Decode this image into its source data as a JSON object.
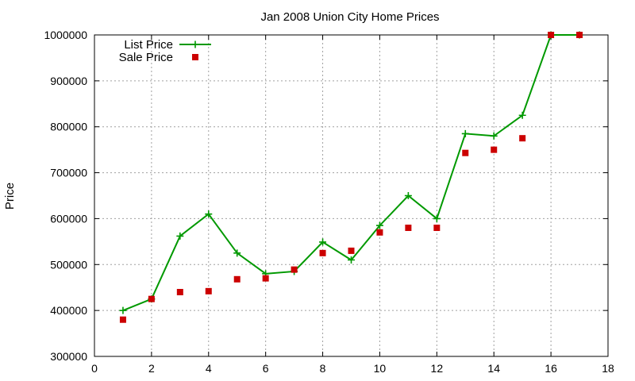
{
  "chart_data": {
    "type": "line",
    "title": "Jan 2008 Union City Home Prices",
    "xlabel": "",
    "ylabel": "Price",
    "xlim": [
      0,
      18
    ],
    "ylim": [
      300000,
      1000000
    ],
    "x_ticks": [
      0,
      2,
      4,
      6,
      8,
      10,
      12,
      14,
      16,
      18
    ],
    "y_ticks": [
      300000,
      400000,
      500000,
      600000,
      700000,
      800000,
      900000,
      1000000
    ],
    "x_tick_labels": [
      "0",
      "2",
      "4",
      "6",
      "8",
      "10",
      "12",
      "14",
      "16",
      "18"
    ],
    "y_tick_labels": [
      "300000",
      "400000",
      "500000",
      "600000",
      "700000",
      "800000",
      "900000",
      "1000000"
    ],
    "grid": true,
    "legend_position": "top-left",
    "series": [
      {
        "name": "List Price",
        "style": "line-with-plus-markers",
        "color": "#009900",
        "x": [
          1,
          2,
          3,
          4,
          5,
          6,
          7,
          8,
          9,
          10,
          11,
          12,
          13,
          14,
          15,
          16,
          17
        ],
        "y": [
          400000,
          425000,
          562000,
          610000,
          525000,
          480000,
          485000,
          549000,
          510000,
          585000,
          650000,
          600000,
          785000,
          780000,
          825000,
          1000000,
          1000000
        ]
      },
      {
        "name": "Sale Price",
        "style": "square-markers",
        "color": "#cc0000",
        "x": [
          1,
          2,
          3,
          4,
          5,
          6,
          7,
          8,
          9,
          10,
          11,
          12,
          13,
          14,
          15,
          16,
          17
        ],
        "y": [
          380000,
          425000,
          440000,
          442000,
          468000,
          470000,
          489000,
          525000,
          530000,
          570000,
          580000,
          580000,
          743000,
          750000,
          775000,
          1000000,
          1000000
        ]
      }
    ]
  }
}
